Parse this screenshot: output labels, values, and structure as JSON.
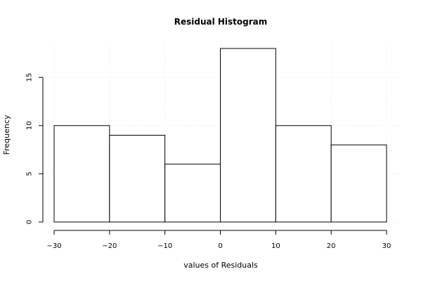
{
  "chart_data": {
    "type": "bar",
    "title": "Residual Histogram",
    "xlabel": "values of Residuals",
    "ylabel": "Frequency",
    "bins": [
      {
        "from": -30,
        "to": -20,
        "count": 10
      },
      {
        "from": -20,
        "to": -10,
        "count": 9
      },
      {
        "from": -10,
        "to": 0,
        "count": 6
      },
      {
        "from": 0,
        "to": 10,
        "count": 18
      },
      {
        "from": 10,
        "to": 20,
        "count": 10
      },
      {
        "from": 20,
        "to": 30,
        "count": 8
      }
    ],
    "xlim": [
      -30,
      30
    ],
    "ylim": [
      0,
      18
    ],
    "xticks": [
      "−30",
      "−20",
      "−10",
      "0",
      "10",
      "20",
      "30"
    ],
    "xtick_values": [
      -30,
      -20,
      -10,
      0,
      10,
      20,
      30
    ],
    "yticks": [
      "0",
      "5",
      "10",
      "15"
    ],
    "ytick_values": [
      0,
      5,
      10,
      15
    ],
    "grid": true
  }
}
